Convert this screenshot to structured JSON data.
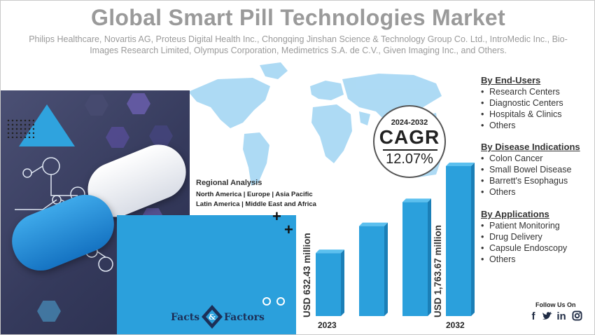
{
  "title": "Global Smart Pill Technologies Market",
  "subtitle": "Philips Healthcare, Novartis AG, Proteus Digital Health Inc., Chongqing Jinshan Science & Technology Group Co. Ltd., IntroMedic Inc., Bio-Images Research Limited, Olympus Corporation, Medimetrics S.A. de C.V., Given Imaging Inc., and Others.",
  "regional": {
    "title": "Regional Analysis",
    "line1": "North America | Europe | Asia Pacific",
    "line2": "Latin America | Middle East and Africa"
  },
  "cagr": {
    "period": "2024-2032",
    "label": "CAGR",
    "value": "12.07%"
  },
  "market": {
    "start_label": "USD 632.43 million",
    "start_year": "2023",
    "end_label": "USD 1,763.67 million",
    "end_year": "2032",
    "bar_levels": [
      0.42,
      0.6,
      0.76,
      1.0
    ],
    "bar_color": "#2ba0dc"
  },
  "segments": [
    {
      "heading": "By End-Users",
      "items": [
        "Research Centers",
        "Diagnostic Centers",
        "Hospitals & Clinics",
        "Others"
      ]
    },
    {
      "heading": "By Disease Indications",
      "items": [
        "Colon Cancer",
        "Small Bowel Disease",
        "Barrett's Esophagus",
        "Others"
      ]
    },
    {
      "heading": "By Applications",
      "items": [
        "Patient Monitoring",
        "Drug Delivery",
        "Capsule Endoscopy",
        "Others"
      ]
    }
  ],
  "logo": {
    "left": "Facts",
    "right": "Factors"
  },
  "social": {
    "title": "Follow Us On",
    "icons": [
      "facebook-icon",
      "twitter-icon",
      "linkedin-icon",
      "instagram-icon"
    ]
  },
  "colors": {
    "accent": "#2ba0dc",
    "title": "#9a9a9a",
    "hero": "#3d4266"
  }
}
